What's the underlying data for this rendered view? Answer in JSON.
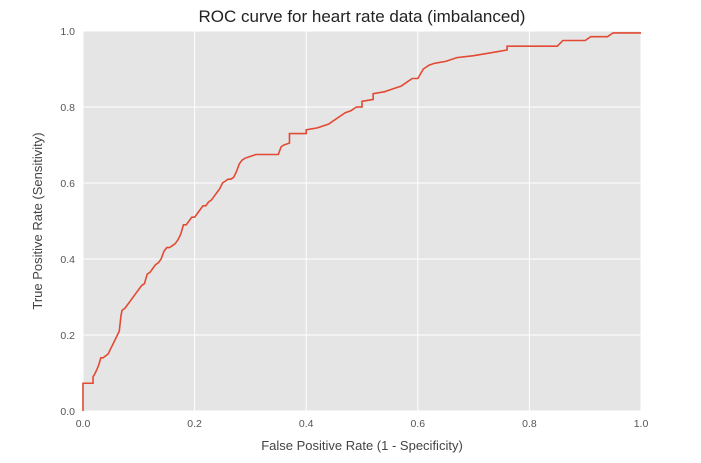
{
  "chart_data": {
    "type": "line",
    "title": "ROC curve for heart rate data (imbalanced)",
    "xlabel": "False Positive Rate (1 - Specificity)",
    "ylabel": "True Positive Rate (Sensitivity)",
    "xlim": [
      0.0,
      1.0
    ],
    "ylim": [
      0.0,
      1.0
    ],
    "x_ticks": [
      "0.0",
      "0.2",
      "0.4",
      "0.6",
      "0.8",
      "1.0"
    ],
    "y_ticks": [
      "0.0",
      "0.2",
      "0.4",
      "0.6",
      "0.8",
      "1.0"
    ],
    "grid": true,
    "colors": {
      "background": "#e5e5e5",
      "grid": "#ffffff",
      "line": "#e24a33"
    },
    "series": [
      {
        "x": [
          0.0,
          0.0,
          0.018,
          0.018,
          0.022,
          0.025,
          0.028,
          0.032,
          0.036,
          0.045,
          0.05,
          0.055,
          0.06,
          0.065,
          0.068,
          0.07,
          0.075,
          0.08,
          0.085,
          0.09,
          0.095,
          0.1,
          0.105,
          0.11,
          0.115,
          0.12,
          0.125,
          0.13,
          0.135,
          0.14,
          0.145,
          0.15,
          0.155,
          0.16,
          0.165,
          0.17,
          0.175,
          0.18,
          0.185,
          0.19,
          0.195,
          0.2,
          0.205,
          0.21,
          0.215,
          0.22,
          0.225,
          0.23,
          0.235,
          0.24,
          0.245,
          0.25,
          0.255,
          0.26,
          0.265,
          0.27,
          0.275,
          0.28,
          0.285,
          0.29,
          0.3,
          0.31,
          0.35,
          0.355,
          0.36,
          0.37,
          0.37,
          0.4,
          0.4,
          0.42,
          0.43,
          0.44,
          0.45,
          0.46,
          0.47,
          0.48,
          0.49,
          0.5,
          0.5,
          0.52,
          0.52,
          0.54,
          0.55,
          0.56,
          0.57,
          0.58,
          0.59,
          0.6,
          0.61,
          0.62,
          0.63,
          0.65,
          0.67,
          0.7,
          0.72,
          0.74,
          0.76,
          0.76,
          0.85,
          0.86,
          0.9,
          0.91,
          0.94,
          0.95,
          1.0
        ],
        "y": [
          0.0,
          0.073,
          0.073,
          0.09,
          0.1,
          0.11,
          0.12,
          0.14,
          0.14,
          0.15,
          0.165,
          0.18,
          0.195,
          0.21,
          0.25,
          0.265,
          0.27,
          0.28,
          0.29,
          0.3,
          0.31,
          0.32,
          0.33,
          0.335,
          0.36,
          0.365,
          0.375,
          0.385,
          0.39,
          0.4,
          0.42,
          0.43,
          0.43,
          0.435,
          0.44,
          0.45,
          0.465,
          0.49,
          0.49,
          0.5,
          0.51,
          0.51,
          0.52,
          0.53,
          0.54,
          0.54,
          0.55,
          0.555,
          0.565,
          0.575,
          0.585,
          0.6,
          0.605,
          0.61,
          0.61,
          0.615,
          0.63,
          0.65,
          0.66,
          0.665,
          0.67,
          0.675,
          0.675,
          0.695,
          0.7,
          0.705,
          0.73,
          0.73,
          0.74,
          0.745,
          0.75,
          0.755,
          0.765,
          0.775,
          0.785,
          0.79,
          0.8,
          0.8,
          0.815,
          0.82,
          0.835,
          0.84,
          0.845,
          0.85,
          0.855,
          0.865,
          0.875,
          0.875,
          0.9,
          0.91,
          0.915,
          0.92,
          0.93,
          0.935,
          0.94,
          0.945,
          0.95,
          0.96,
          0.96,
          0.975,
          0.975,
          0.985,
          0.985,
          0.995,
          0.995
        ]
      }
    ]
  }
}
